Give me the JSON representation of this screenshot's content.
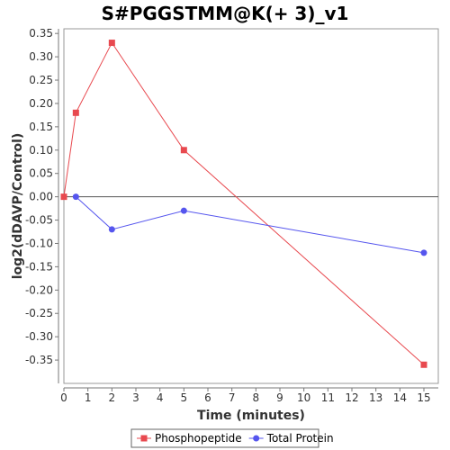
{
  "chart_data": {
    "type": "line",
    "title": "S#PGGSTMM@K(+ 3)_v1",
    "xlabel": "Time (minutes)",
    "ylabel": "log2(dDAVP/Control)",
    "xlim": [
      0,
      15.6
    ],
    "ylim": [
      -0.4,
      0.36
    ],
    "x_ticks": [
      0,
      1,
      2,
      3,
      4,
      5,
      6,
      7,
      8,
      9,
      10,
      11,
      12,
      13,
      14,
      15
    ],
    "y_ticks": [
      0.35,
      0.3,
      0.25,
      0.2,
      0.15,
      0.1,
      0.05,
      0.0,
      -0.05,
      -0.1,
      -0.15,
      -0.2,
      -0.25,
      -0.3,
      -0.35
    ],
    "y_tick_labels": [
      "0.35",
      "0.30",
      "0.25",
      "0.20",
      "0.15",
      "0.10",
      "0.05",
      "0.00",
      "-0.05",
      "-0.10",
      "-0.15",
      "-0.20",
      "-0.25",
      "-0.30",
      "-0.35"
    ],
    "zero_line": true,
    "grid": false,
    "legend_position": "bottom",
    "series": [
      {
        "name": "Phosphopeptide",
        "color": "#e8494f",
        "marker": "square",
        "x": [
          0,
          0.5,
          2,
          5,
          15
        ],
        "y": [
          0.0,
          0.18,
          0.33,
          0.1,
          -0.36
        ]
      },
      {
        "name": "Total Protein",
        "color": "#5555ee",
        "marker": "circle",
        "x": [
          0.5,
          2,
          5,
          15
        ],
        "y": [
          0.0,
          -0.07,
          -0.03,
          -0.12
        ]
      }
    ]
  }
}
